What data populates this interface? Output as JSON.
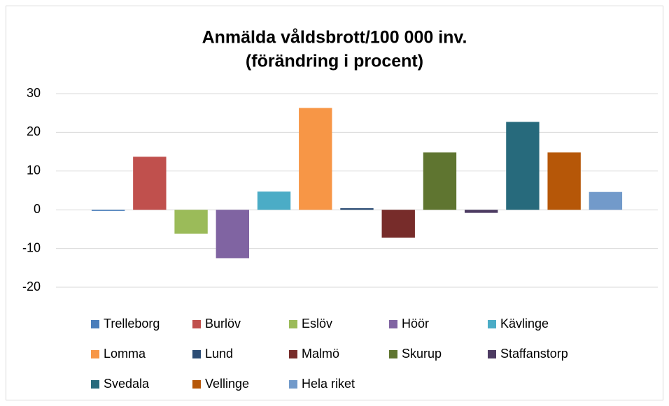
{
  "chart_data": {
    "type": "bar",
    "title": [
      "Anmälda våldsbrott/100 000 inv.",
      "(förändring i procent)"
    ],
    "series": [
      {
        "name": "Trelleborg",
        "color": "#4a7ebb",
        "values": [
          -0.3
        ]
      },
      {
        "name": "Burlöv",
        "color": "#c0504d",
        "values": [
          13.7
        ]
      },
      {
        "name": "Eslöv",
        "color": "#9bbb59",
        "values": [
          -6.2
        ]
      },
      {
        "name": "Höör",
        "color": "#8064a2",
        "values": [
          -12.5
        ]
      },
      {
        "name": "Kävlinge",
        "color": "#4bacc6",
        "values": [
          4.7
        ]
      },
      {
        "name": "Lomma",
        "color": "#f79646",
        "values": [
          26.3
        ]
      },
      {
        "name": "Lund",
        "color": "#2c4d75",
        "values": [
          0.4
        ]
      },
      {
        "name": "Malmö",
        "color": "#772c2a",
        "values": [
          -7.2
        ]
      },
      {
        "name": "Skurup",
        "color": "#5f7530",
        "values": [
          14.8
        ]
      },
      {
        "name": "Staffanstorp",
        "color": "#4d3b62",
        "values": [
          -0.8
        ]
      },
      {
        "name": "Svedala",
        "color": "#276a7c",
        "values": [
          22.7
        ]
      },
      {
        "name": "Vellinge",
        "color": "#b65708",
        "values": [
          14.8
        ]
      },
      {
        "name": "Hela riket",
        "color": "#729aca",
        "values": [
          4.6
        ]
      }
    ],
    "ylim": [
      -20,
      30
    ],
    "yticks": [
      -20,
      -10,
      0,
      10,
      20,
      30
    ],
    "grid": true,
    "legend": "bottom"
  }
}
